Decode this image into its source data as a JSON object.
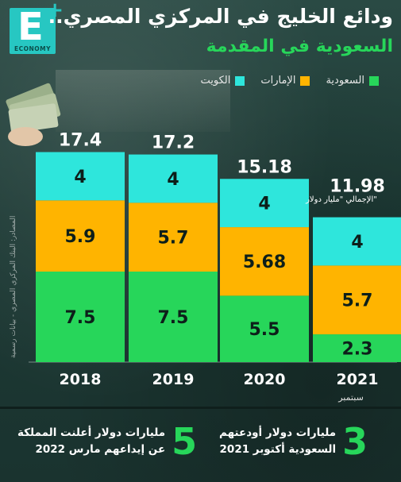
{
  "brand": {
    "letter": "E",
    "plus": "+",
    "name": "ECONOMY"
  },
  "title": {
    "line1": "ودائع الخليج في المركزي المصري..",
    "line2": "السعودية في المقدمة"
  },
  "source": "المصادر: البنك المركزي المصري - بيانات رسمية",
  "total_unit_label": "الإجمالي \"مليار دولار\"",
  "month_label": "سبتمبر",
  "colors": {
    "saudi": "#27d65a",
    "uae": "#ffb400",
    "kuwait": "#2ee6dc",
    "title_accent": "#27d65a"
  },
  "chart_data": {
    "type": "bar",
    "stacked": true,
    "categories": [
      "2018",
      "2019",
      "2020",
      "2021"
    ],
    "series": [
      {
        "name": "السعودية",
        "color": "#27d65a",
        "values": [
          7.5,
          7.5,
          5.5,
          2.3
        ]
      },
      {
        "name": "الإمارات",
        "color": "#ffb400",
        "values": [
          5.9,
          5.7,
          5.68,
          5.7
        ]
      },
      {
        "name": "الكويت",
        "color": "#2ee6dc",
        "values": [
          4,
          4,
          4,
          4
        ]
      }
    ],
    "totals": [
      "17.4",
      "17.2",
      "15.18",
      "11.98"
    ],
    "data_labels": [
      [
        "7.5",
        "5.9",
        "4"
      ],
      [
        "7.5",
        "5.7",
        "4"
      ],
      [
        "5.5",
        "5.68",
        "4"
      ],
      [
        "2.3",
        "5.7",
        "4"
      ]
    ],
    "ylim": [
      0,
      18
    ],
    "legend_position": "top-right",
    "grid": false
  },
  "facts": [
    {
      "number": "5",
      "lines": [
        "مليارات دولار أعلنت المملكة",
        "عن إيداعهم مارس 2022"
      ]
    },
    {
      "number": "3",
      "lines": [
        "مليارات دولار أودعتهم",
        "السعودية أكتوبر 2021"
      ]
    }
  ]
}
